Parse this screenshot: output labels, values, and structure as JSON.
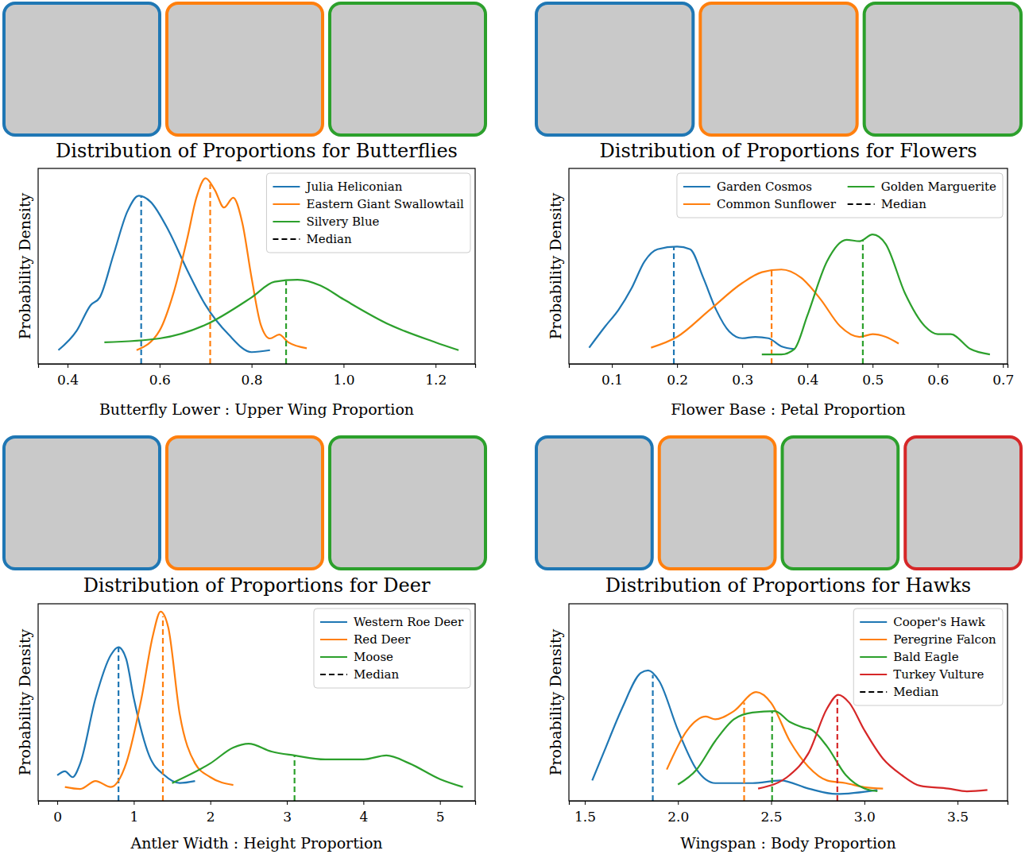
{
  "chart_data": [
    {
      "type": "line",
      "title": "Distribution of Proportions for Butterflies",
      "x_label": "Butterfly Lower : Upper Wing Proportion",
      "y_label": "Probability Density",
      "xlim": [
        0.336,
        1.286
      ],
      "ylim": [
        0,
        1
      ],
      "xticks": [
        0.4,
        0.6,
        0.8,
        {
          "value": 1.0,
          "label": "1.0"
        },
        1.2
      ],
      "tick_labels": "x",
      "legend": "upper right",
      "median_label": "Median",
      "series": [
        {
          "name": "Julia Heliconian",
          "color": "#1f77b4",
          "median": 0.56,
          "x": [
            0.38,
            0.42,
            0.45,
            0.47,
            0.5,
            0.53,
            0.555,
            0.58,
            0.62,
            0.66,
            0.7,
            0.75,
            0.8,
            0.84
          ],
          "values": [
            0.07,
            0.17,
            0.3,
            0.34,
            0.56,
            0.78,
            0.86,
            0.83,
            0.68,
            0.48,
            0.3,
            0.15,
            0.06,
            0.07
          ]
        },
        {
          "name": "Eastern Giant Swallowtail",
          "color": "#ff7f0e",
          "median": 0.71,
          "x": [
            0.55,
            0.6,
            0.63,
            0.66,
            0.68,
            0.7,
            0.72,
            0.74,
            0.76,
            0.78,
            0.8,
            0.82,
            0.84,
            0.86,
            0.88,
            0.92
          ],
          "values": [
            0.07,
            0.17,
            0.36,
            0.64,
            0.85,
            0.95,
            0.89,
            0.8,
            0.85,
            0.72,
            0.44,
            0.2,
            0.13,
            0.15,
            0.11,
            0.08
          ]
        },
        {
          "name": "Silvery Blue",
          "color": "#2ca02c",
          "median": 0.875,
          "x": [
            0.48,
            0.6,
            0.7,
            0.8,
            0.85,
            0.9,
            0.95,
            1.0,
            1.1,
            1.2,
            1.25
          ],
          "values": [
            0.11,
            0.13,
            0.2,
            0.34,
            0.42,
            0.43,
            0.4,
            0.33,
            0.2,
            0.11,
            0.07
          ]
        }
      ]
    },
    {
      "type": "line",
      "title": "Distribution of Proportions for Flowers",
      "x_label": "Flower Base : Petal Proportion",
      "y_label": "Probability Density",
      "xlim": [
        0.034,
        0.707
      ],
      "ylim": [
        0,
        1.45
      ],
      "xticks": [
        0.1,
        0.2,
        0.3,
        0.4,
        0.5,
        0.6,
        0.7
      ],
      "tick_labels": "x",
      "legend": "upper right",
      "median_label": "Median",
      "series": [
        {
          "name": "Garden Cosmos",
          "color": "#1f77b4",
          "median": 0.195,
          "x": [
            0.065,
            0.09,
            0.11,
            0.13,
            0.15,
            0.17,
            0.2,
            0.22,
            0.24,
            0.26,
            0.28,
            0.3,
            0.32,
            0.34,
            0.36,
            0.38
          ],
          "values": [
            0.12,
            0.28,
            0.4,
            0.56,
            0.76,
            0.85,
            0.87,
            0.85,
            0.64,
            0.4,
            0.24,
            0.19,
            0.2,
            0.19,
            0.13,
            0.11
          ]
        },
        {
          "name": "Common Sunflower",
          "color": "#ff7f0e",
          "median": 0.345,
          "x": [
            0.16,
            0.2,
            0.25,
            0.3,
            0.33,
            0.36,
            0.39,
            0.42,
            0.45,
            0.48,
            0.5,
            0.52,
            0.54
          ],
          "values": [
            0.12,
            0.2,
            0.4,
            0.6,
            0.68,
            0.7,
            0.64,
            0.48,
            0.28,
            0.2,
            0.22,
            0.2,
            0.15
          ]
        },
        {
          "name": "Golden Marguerite",
          "color": "#2ca02c",
          "median": 0.485,
          "x": [
            0.33,
            0.36,
            0.38,
            0.4,
            0.43,
            0.46,
            0.48,
            0.5,
            0.52,
            0.55,
            0.58,
            0.6,
            0.62,
            0.65,
            0.68
          ],
          "values": [
            0.07,
            0.07,
            0.11,
            0.36,
            0.76,
            0.92,
            0.91,
            0.96,
            0.89,
            0.52,
            0.28,
            0.22,
            0.22,
            0.11,
            0.07
          ]
        }
      ]
    },
    {
      "type": "line",
      "title": "Distribution of Proportions for Deer",
      "x_label": "Antler Width : Height Proportion",
      "y_label": "Probability Density",
      "xlim": [
        -0.25,
        5.46
      ],
      "ylim": [
        0,
        1
      ],
      "xticks": [
        0,
        1,
        2,
        3,
        4,
        5
      ],
      "tick_labels": "x",
      "legend": "upper right",
      "median_label": "Median",
      "series": [
        {
          "name": "Western Roe Deer",
          "color": "#1f77b4",
          "median": 0.8,
          "x": [
            0.0,
            0.1,
            0.2,
            0.3,
            0.5,
            0.7,
            0.8,
            0.9,
            1.0,
            1.2,
            1.4,
            1.6,
            1.8
          ],
          "values": [
            0.13,
            0.15,
            0.12,
            0.19,
            0.52,
            0.74,
            0.78,
            0.72,
            0.52,
            0.23,
            0.13,
            0.09,
            0.1
          ]
        },
        {
          "name": "Red Deer",
          "color": "#ff7f0e",
          "median": 1.38,
          "x": [
            0.1,
            0.3,
            0.5,
            0.7,
            0.9,
            1.1,
            1.25,
            1.35,
            1.45,
            1.6,
            1.8,
            2.0,
            2.3
          ],
          "values": [
            0.07,
            0.06,
            0.1,
            0.07,
            0.19,
            0.52,
            0.84,
            0.96,
            0.88,
            0.44,
            0.19,
            0.12,
            0.08
          ]
        },
        {
          "name": "Moose",
          "color": "#2ca02c",
          "median": 3.1,
          "x": [
            1.5,
            2.0,
            2.3,
            2.5,
            2.8,
            3.1,
            3.5,
            4.0,
            4.3,
            4.6,
            5.0,
            5.3
          ],
          "values": [
            0.09,
            0.19,
            0.27,
            0.29,
            0.25,
            0.23,
            0.21,
            0.21,
            0.23,
            0.19,
            0.11,
            0.07
          ]
        }
      ]
    },
    {
      "type": "line",
      "title": "Distribution of Proportions for Hawks",
      "x_label": "Wingspan : Body Proportion",
      "y_label": "Probability Density",
      "xlim": [
        1.415,
        3.768
      ],
      "ylim": [
        0,
        1.45
      ],
      "xticks": [
        1.5,
        {
          "value": 2.0,
          "label": "2.0"
        },
        2.5,
        {
          "value": 3.0,
          "label": "3.0"
        },
        3.5
      ],
      "tick_labels": "x",
      "legend": "upper right",
      "median_label": "Median",
      "series": [
        {
          "name": "Cooper's Hawk",
          "color": "#1f77b4",
          "median": 1.865,
          "x": [
            1.54,
            1.6,
            1.7,
            1.8,
            1.84,
            1.9,
            2.0,
            2.1,
            2.2,
            2.4,
            2.55,
            2.7,
            2.85,
            3.07
          ],
          "values": [
            0.15,
            0.35,
            0.68,
            0.94,
            0.96,
            0.88,
            0.52,
            0.23,
            0.13,
            0.13,
            0.15,
            0.09,
            0.05,
            0.08
          ]
        },
        {
          "name": "Peregrine Falcon",
          "color": "#ff7f0e",
          "median": 2.355,
          "x": [
            1.94,
            2.05,
            2.15,
            2.2,
            2.3,
            2.42,
            2.5,
            2.6,
            2.7,
            2.8,
            2.9,
            3.0,
            3.1
          ],
          "values": [
            0.23,
            0.52,
            0.62,
            0.6,
            0.66,
            0.8,
            0.72,
            0.44,
            0.25,
            0.15,
            0.13,
            0.1,
            0.09
          ]
        },
        {
          "name": "Bald Eagle",
          "color": "#2ca02c",
          "median": 2.505,
          "x": [
            2.0,
            2.1,
            2.2,
            2.3,
            2.4,
            2.52,
            2.6,
            2.67,
            2.72,
            2.8,
            2.9,
            3.0,
            3.07
          ],
          "values": [
            0.12,
            0.23,
            0.44,
            0.6,
            0.65,
            0.66,
            0.58,
            0.54,
            0.52,
            0.4,
            0.19,
            0.09,
            0.07
          ]
        },
        {
          "name": "Turkey Vulture",
          "color": "#d62728",
          "median": 2.855,
          "x": [
            2.43,
            2.6,
            2.7,
            2.8,
            2.86,
            2.92,
            3.0,
            3.1,
            3.2,
            3.3,
            3.45,
            3.55,
            3.66
          ],
          "values": [
            0.09,
            0.19,
            0.35,
            0.68,
            0.78,
            0.72,
            0.52,
            0.31,
            0.19,
            0.11,
            0.09,
            0.07,
            0.08
          ]
        }
      ]
    }
  ]
}
